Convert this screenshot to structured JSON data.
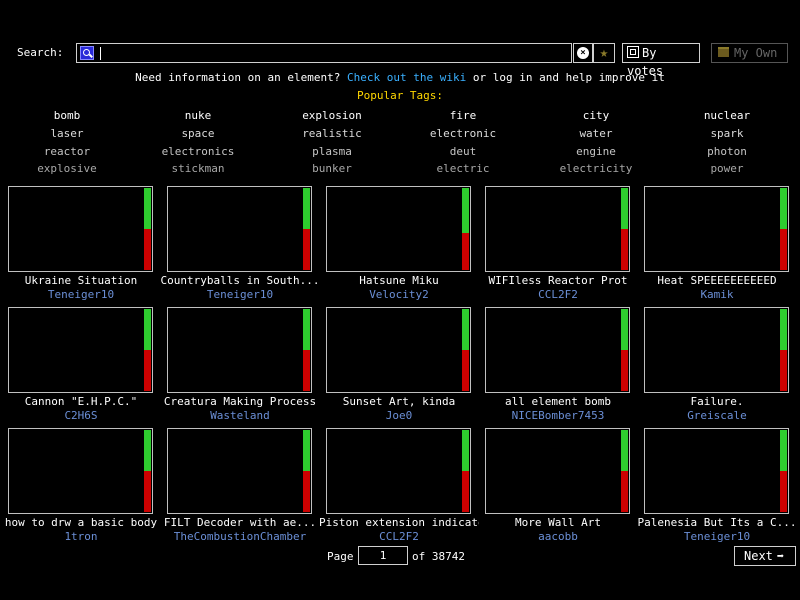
{
  "search": {
    "label": "Search:",
    "value": "",
    "placeholder": ""
  },
  "toolbar": {
    "sort_label": "By votes",
    "myown_label": "My Own"
  },
  "info": {
    "prefix": "Need information on an element?",
    "link": "Check out the wiki",
    "suffix": "or log in and help improve it"
  },
  "popular": {
    "title": "Popular Tags:",
    "rows": [
      {
        "color": "#ffffff",
        "tags": [
          "bomb",
          "nuke",
          "explosion",
          "fire",
          "city",
          "nuclear"
        ]
      },
      {
        "color": "#dcdcdc",
        "tags": [
          "laser",
          "space",
          "realistic",
          "electronic",
          "water",
          "spark"
        ]
      },
      {
        "color": "#c4c4c4",
        "tags": [
          "reactor",
          "electronics",
          "plasma",
          "deut",
          "engine",
          "photon"
        ]
      },
      {
        "color": "#a8a8a8",
        "tags": [
          "explosive",
          "stickman",
          "bunker",
          "electric",
          "electricity",
          "power"
        ]
      }
    ]
  },
  "saves": [
    {
      "title": "Ukraine Situation",
      "author": "Teneiger10",
      "up": 0.5
    },
    {
      "title": "Countryballs in South...",
      "author": "Teneiger10",
      "up": 0.5
    },
    {
      "title": "Hatsune Miku",
      "author": "Velocity2",
      "up": 0.55
    },
    {
      "title": "WIFIless Reactor Prot",
      "author": "CCL2F2",
      "up": 0.5
    },
    {
      "title": "Heat SPEEEEEEEEEED",
      "author": "Kamik",
      "up": 0.5
    },
    {
      "title": "Cannon \"E.H.P.C.\"",
      "author": "C2H6S",
      "up": 0.5
    },
    {
      "title": "Creatura Making Process",
      "author": "Wasteland",
      "up": 0.5
    },
    {
      "title": "Sunset Art, kinda",
      "author": "Joe0",
      "up": 0.5
    },
    {
      "title": "all element bomb",
      "author": "NICEBomber7453",
      "up": 0.5
    },
    {
      "title": "Failure.",
      "author": "Greiscale",
      "up": 0.5
    },
    {
      "title": "how to drw a basic body",
      "author": "1tron",
      "up": 0.5
    },
    {
      "title": "FILT Decoder with ae...",
      "author": "TheCombustionChamber",
      "up": 0.5
    },
    {
      "title": "Piston extension indicator",
      "author": "CCL2F2",
      "up": 0.5
    },
    {
      "title": "More Wall Art",
      "author": "aacobb",
      "up": 0.5
    },
    {
      "title": "Palenesia But Its a C...",
      "author": "Teneiger10",
      "up": 0.5
    }
  ],
  "pagination": {
    "page_label": "Page",
    "page_value": "1",
    "of_label": "of 38742",
    "next_label": "Next"
  },
  "colors": {
    "vote_up": "#2ecc2e",
    "vote_down": "#cc0000",
    "link": "#3ab0ff",
    "author": "#6b8fd6",
    "popular_title": "#ffd700"
  }
}
